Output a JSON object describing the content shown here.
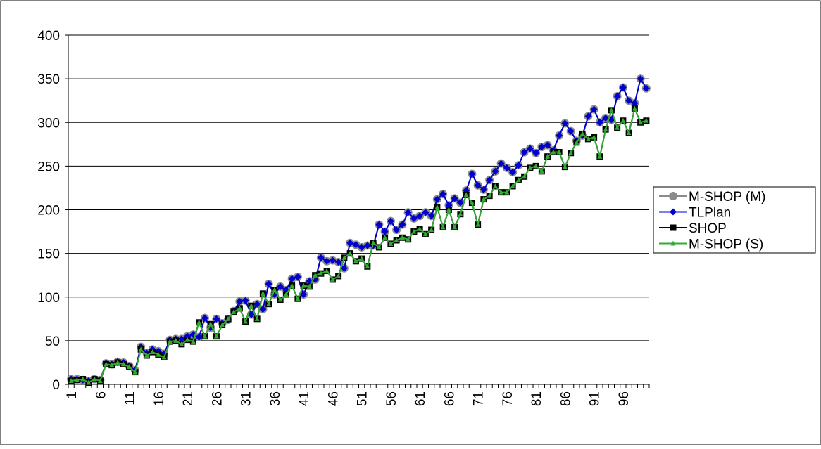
{
  "chart_data": {
    "type": "line",
    "categories": [
      "1",
      null,
      null,
      null,
      null,
      "6",
      null,
      null,
      null,
      null,
      "11",
      null,
      null,
      null,
      null,
      "16",
      null,
      null,
      null,
      null,
      "21",
      null,
      null,
      null,
      null,
      "26",
      null,
      null,
      null,
      null,
      "31",
      null,
      null,
      null,
      null,
      "36",
      null,
      null,
      null,
      null,
      "41",
      null,
      null,
      null,
      null,
      "46",
      null,
      null,
      null,
      null,
      "51",
      null,
      null,
      null,
      null,
      "56",
      null,
      null,
      null,
      null,
      "61",
      null,
      null,
      null,
      null,
      "66",
      null,
      null,
      null,
      null,
      "71",
      null,
      null,
      null,
      null,
      "76",
      null,
      null,
      null,
      null,
      "81",
      null,
      null,
      null,
      null,
      "86",
      null,
      null,
      null,
      null,
      "91",
      null,
      null,
      null,
      null,
      "96",
      null,
      null,
      null,
      null
    ],
    "series": [
      {
        "name": "M-SHOP (M)",
        "color": "#8c8c8c",
        "marker": "circle",
        "values": [
          6,
          6,
          5,
          4,
          6,
          5,
          24,
          23,
          26,
          25,
          21,
          16,
          43,
          36,
          40,
          38,
          35,
          51,
          52,
          52,
          55,
          57,
          54,
          76,
          65,
          75,
          70,
          74,
          84,
          95,
          96,
          80,
          92,
          86,
          115,
          103,
          112,
          108,
          121,
          123,
          103,
          118,
          120,
          145,
          141,
          142,
          140,
          133,
          162,
          160,
          157,
          159,
          159,
          183,
          175,
          187,
          177,
          183,
          197,
          190,
          193,
          197,
          193,
          212,
          218,
          205,
          213,
          208,
          222,
          241,
          228,
          223,
          234,
          244,
          253,
          248,
          243,
          251,
          266,
          270,
          265,
          272,
          274,
          268,
          285,
          299,
          290,
          279,
          285,
          307,
          315,
          300,
          305,
          303,
          330,
          340,
          325,
          322,
          350,
          339
        ]
      },
      {
        "name": "TLPlan",
        "color": "#0000cc",
        "marker": "diamond",
        "values": [
          6,
          6,
          5,
          4,
          6,
          5,
          24,
          23,
          26,
          25,
          21,
          16,
          43,
          36,
          40,
          38,
          35,
          51,
          52,
          52,
          55,
          57,
          54,
          76,
          65,
          75,
          70,
          74,
          84,
          95,
          96,
          80,
          92,
          86,
          115,
          103,
          112,
          108,
          121,
          123,
          103,
          118,
          120,
          145,
          141,
          142,
          140,
          133,
          162,
          160,
          157,
          159,
          159,
          183,
          175,
          187,
          177,
          183,
          197,
          190,
          193,
          197,
          193,
          212,
          218,
          205,
          213,
          208,
          222,
          241,
          228,
          223,
          234,
          244,
          253,
          248,
          243,
          251,
          266,
          270,
          265,
          272,
          274,
          268,
          285,
          299,
          290,
          279,
          285,
          307,
          315,
          300,
          305,
          303,
          330,
          340,
          325,
          322,
          350,
          339
        ]
      },
      {
        "name": "SHOP",
        "color": "#000000",
        "marker": "square",
        "values": [
          4,
          5,
          6,
          2,
          6,
          4,
          23,
          22,
          25,
          23,
          20,
          14,
          40,
          33,
          37,
          34,
          31,
          49,
          50,
          46,
          51,
          49,
          71,
          55,
          69,
          55,
          68,
          75,
          83,
          87,
          72,
          90,
          75,
          104,
          92,
          108,
          97,
          103,
          113,
          98,
          113,
          112,
          125,
          127,
          130,
          120,
          124,
          145,
          150,
          141,
          144,
          135,
          162,
          157,
          168,
          161,
          165,
          168,
          166,
          175,
          178,
          172,
          177,
          203,
          180,
          200,
          180,
          195,
          217,
          208,
          183,
          212,
          216,
          227,
          220,
          220,
          227,
          234,
          238,
          248,
          250,
          244,
          261,
          266,
          266,
          249,
          265,
          277,
          287,
          281,
          283,
          261,
          292,
          314,
          294,
          302,
          288,
          316,
          300,
          302
        ]
      },
      {
        "name": "M-SHOP (S)",
        "color": "#33aa33",
        "marker": "triangle",
        "values": [
          4,
          5,
          6,
          2,
          6,
          4,
          23,
          22,
          25,
          23,
          20,
          14,
          40,
          33,
          37,
          34,
          31,
          49,
          50,
          46,
          51,
          49,
          71,
          55,
          69,
          55,
          68,
          75,
          83,
          87,
          72,
          90,
          75,
          104,
          92,
          108,
          97,
          103,
          113,
          98,
          113,
          112,
          125,
          127,
          130,
          120,
          124,
          145,
          150,
          141,
          144,
          135,
          162,
          157,
          168,
          161,
          165,
          168,
          166,
          175,
          178,
          172,
          177,
          203,
          180,
          200,
          180,
          195,
          217,
          208,
          183,
          212,
          216,
          227,
          220,
          220,
          227,
          234,
          238,
          248,
          250,
          244,
          261,
          266,
          266,
          249,
          265,
          277,
          287,
          281,
          283,
          261,
          292,
          314,
          294,
          302,
          288,
          316,
          300,
          302
        ]
      }
    ],
    "ylim": [
      0,
      400
    ],
    "yticks": [
      0,
      50,
      100,
      150,
      200,
      250,
      300,
      350,
      400
    ],
    "grid": true,
    "legend": "right"
  }
}
